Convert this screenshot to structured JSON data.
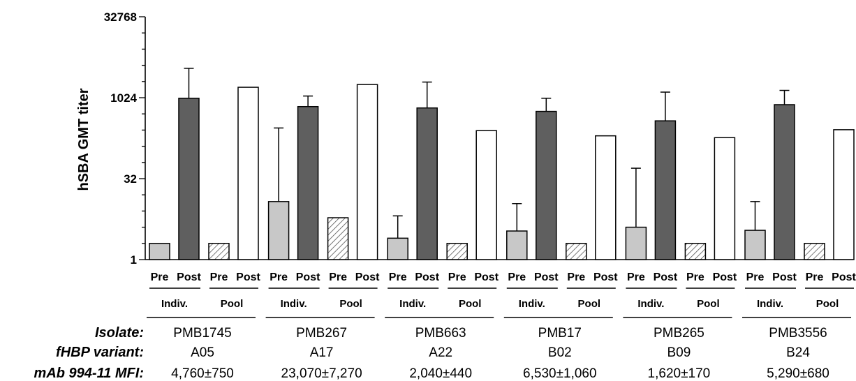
{
  "chart_data": {
    "type": "bar",
    "ylabel": "hSBA GMT titer",
    "yscale": "log2",
    "ylim": [
      1,
      32768
    ],
    "yticks": [
      1,
      32,
      1024,
      32768
    ],
    "yticks_labels": [
      "1",
      "32",
      "1024",
      "32768"
    ],
    "condition_labels": [
      "Pre",
      "Post",
      "Pre",
      "Post"
    ],
    "subgroup_labels": [
      "Indiv.",
      "Pool"
    ],
    "row_headers": [
      "Isolate:",
      "fHBP variant:",
      "mAb 994-11 MFI:"
    ],
    "series": [
      {
        "kind": "individual-pre",
        "fill": "#c8c8c8"
      },
      {
        "kind": "individual-post",
        "fill": "#5f5f5f"
      },
      {
        "kind": "pool-pre",
        "fill": "hatched"
      },
      {
        "kind": "pool-post",
        "fill": "#ffffff"
      }
    ],
    "groups": [
      {
        "isolate": "PMB1745",
        "variant": "A05",
        "mfi": "4,760±750",
        "values": [
          2,
          1000,
          2,
          1600
        ],
        "errors": [
          null,
          3600,
          null,
          null
        ]
      },
      {
        "isolate": "PMB267",
        "variant": "A17",
        "mfi": "23,070±7,270",
        "values": [
          12,
          700,
          6,
          1800
        ],
        "errors": [
          280,
          1100,
          null,
          null
        ]
      },
      {
        "isolate": "PMB663",
        "variant": "A22",
        "mfi": "2,040±440",
        "values": [
          2.5,
          660,
          2,
          250
        ],
        "errors": [
          6.5,
          2000,
          null,
          null
        ]
      },
      {
        "isolate": "PMB17",
        "variant": "B02",
        "mfi": "6,530±1,060",
        "values": [
          3.4,
          570,
          2,
          200
        ],
        "errors": [
          11,
          1000,
          null,
          null
        ]
      },
      {
        "isolate": "PMB265",
        "variant": "B09",
        "mfi": "1,620±170",
        "values": [
          4,
          380,
          2,
          185
        ],
        "errors": [
          50,
          1300,
          null,
          null
        ]
      },
      {
        "isolate": "PMB3556",
        "variant": "B24",
        "mfi": "5,290±680",
        "values": [
          3.5,
          760,
          2,
          260
        ],
        "errors": [
          12,
          1400,
          null,
          null
        ]
      }
    ]
  }
}
